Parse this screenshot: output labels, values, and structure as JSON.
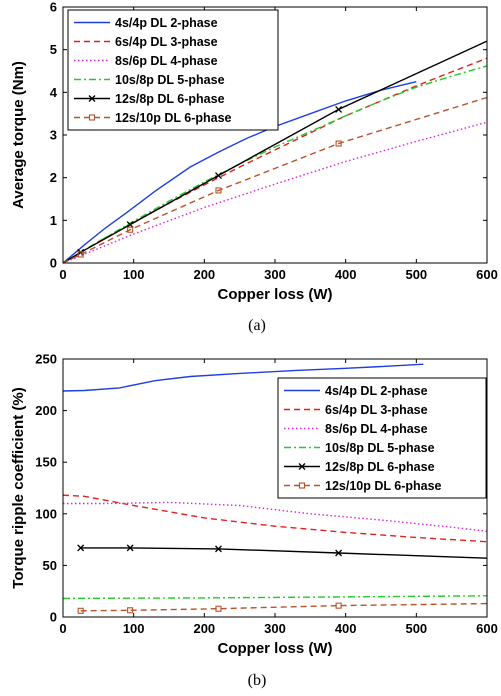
{
  "chart_data": [
    {
      "type": "line",
      "caption": "(a)",
      "xlabel": "Copper loss (W)",
      "ylabel": "Average torque (Nm)",
      "xlim": [
        0,
        600
      ],
      "ylim": [
        0,
        6
      ],
      "xticks": [
        0,
        100,
        200,
        300,
        400,
        500,
        600
      ],
      "yticks": [
        0,
        1,
        2,
        3,
        4,
        5,
        6
      ],
      "legend_position": "top-left",
      "series": [
        {
          "name": "4s/4p DL 2-phase",
          "color": "#1f3fe0",
          "dash": "solid",
          "marker": "none",
          "x": [
            0,
            30,
            60,
            90,
            130,
            180,
            220,
            260,
            300,
            350,
            400,
            450,
            500
          ],
          "y": [
            0,
            0.42,
            0.82,
            1.18,
            1.68,
            2.25,
            2.6,
            2.92,
            3.2,
            3.5,
            3.8,
            4.05,
            4.25
          ]
        },
        {
          "name": "6s/4p DL 3-phase",
          "color": "#e02020",
          "dash": "dashed",
          "marker": "none",
          "x": [
            0,
            50,
            100,
            150,
            200,
            250,
            300,
            350,
            400,
            450,
            500,
            550,
            600
          ],
          "y": [
            0,
            0.5,
            0.95,
            1.4,
            1.83,
            2.25,
            2.65,
            3.05,
            3.45,
            3.8,
            4.15,
            4.48,
            4.8
          ]
        },
        {
          "name": "8s/6p DL 4-phase",
          "color": "#e020e0",
          "dash": "dotted",
          "marker": "none",
          "x": [
            0,
            100,
            200,
            300,
            400,
            500,
            600
          ],
          "y": [
            0,
            0.68,
            1.3,
            1.85,
            2.38,
            2.85,
            3.3
          ]
        },
        {
          "name": "10s/8p DL 5-phase",
          "color": "#22cc22",
          "dash": "dashdot",
          "marker": "none",
          "x": [
            0,
            50,
            100,
            150,
            200,
            250,
            300,
            350,
            400,
            450,
            500,
            550,
            600
          ],
          "y": [
            0,
            0.5,
            0.98,
            1.45,
            1.9,
            2.32,
            2.72,
            3.08,
            3.45,
            3.8,
            4.12,
            4.38,
            4.62
          ]
        },
        {
          "name": "12s/8p DL 6-phase",
          "color": "#000000",
          "dash": "solid",
          "marker": "x",
          "x": [
            0,
            25,
            95,
            220,
            390,
            600
          ],
          "y": [
            0,
            0.25,
            0.9,
            2.05,
            3.6,
            5.2
          ]
        },
        {
          "name": "12s/10p DL 6-phase",
          "color": "#b5532a",
          "dash": "dashed",
          "marker": "square",
          "x": [
            0,
            25,
            95,
            220,
            390,
            600
          ],
          "y": [
            0,
            0.2,
            0.78,
            1.7,
            2.8,
            3.88
          ]
        }
      ]
    },
    {
      "type": "line",
      "caption": "(b)",
      "xlabel": "Copper loss (W)",
      "ylabel": "Torque ripple coefficient (%)",
      "xlim": [
        0,
        600
      ],
      "ylim": [
        0,
        250
      ],
      "xticks": [
        0,
        100,
        200,
        300,
        400,
        500,
        600
      ],
      "yticks": [
        0,
        50,
        100,
        150,
        200,
        250
      ],
      "legend_position": "right",
      "series": [
        {
          "name": "4s/4p DL 2-phase",
          "color": "#1f3fe0",
          "dash": "solid",
          "marker": "none",
          "x": [
            0,
            30,
            80,
            130,
            180,
            250,
            330,
            400,
            460,
            510
          ],
          "y": [
            219,
            219.5,
            222,
            229,
            233,
            236,
            239,
            241,
            243,
            245
          ]
        },
        {
          "name": "6s/4p DL 3-phase",
          "color": "#e02020",
          "dash": "dashed",
          "marker": "none",
          "x": [
            0,
            30,
            100,
            200,
            300,
            400,
            500,
            600
          ],
          "y": [
            118,
            117,
            108,
            96,
            88,
            82,
            77,
            73
          ]
        },
        {
          "name": "8s/6p DL 4-phase",
          "color": "#e020e0",
          "dash": "dotted",
          "marker": "none",
          "x": [
            0,
            60,
            150,
            250,
            350,
            450,
            550,
            600
          ],
          "y": [
            110,
            110,
            111,
            108,
            100,
            94,
            87,
            83
          ]
        },
        {
          "name": "10s/8p DL 5-phase",
          "color": "#22cc22",
          "dash": "dashdot",
          "marker": "none",
          "x": [
            0,
            200,
            400,
            600
          ],
          "y": [
            18,
            18.5,
            19.5,
            20.5
          ]
        },
        {
          "name": "12s/8p DL 6-phase",
          "color": "#000000",
          "dash": "solid",
          "marker": "x",
          "x": [
            25,
            95,
            220,
            390,
            600
          ],
          "y": [
            67,
            67,
            66,
            62,
            57
          ]
        },
        {
          "name": "12s/10p DL 6-phase",
          "color": "#b5532a",
          "dash": "dashed",
          "marker": "square",
          "x": [
            25,
            95,
            220,
            390,
            600
          ],
          "y": [
            6,
            6.5,
            8,
            11,
            13
          ]
        }
      ]
    }
  ]
}
